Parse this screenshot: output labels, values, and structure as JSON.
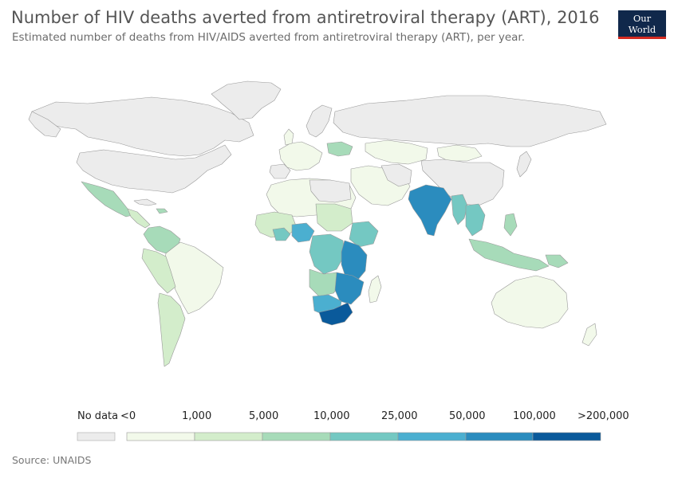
{
  "header": {
    "title": "Number of HIV deaths averted from antiretroviral therapy (ART), 2016",
    "subtitle": "Estimated number of deaths from HIV/AIDS averted from antiretroviral therapy (ART), per year.",
    "logo_line1": "Our World",
    "logo_line2": "in Data"
  },
  "legend": {
    "no_data_label": "No data",
    "no_data_color": "#ececec",
    "bins": [
      {
        "label": "<0",
        "color": "#f2f9ea"
      },
      {
        "label": "1,000",
        "color": "#d3edcb"
      },
      {
        "label": "5,000",
        "color": "#a7dbb9"
      },
      {
        "label": "10,000",
        "color": "#74c8c2"
      },
      {
        "label": "25,000",
        "color": "#4bafd0"
      },
      {
        "label": "50,000",
        "color": "#2b8cbe"
      },
      {
        "label": "100,000",
        "color": "#0a5a9b"
      },
      {
        "label": ">200,000",
        "color": "#0a5a9b"
      }
    ]
  },
  "source": "Source: UNAIDS",
  "colors": {
    "no_data": "#ececec",
    "lt_1000": "#f2f9ea",
    "b1000_5000": "#d3edcb",
    "b5000_10000": "#a7dbb9",
    "b10000_25000": "#74c8c2",
    "b25000_50000": "#4bafd0",
    "b50000_100000": "#2b8cbe",
    "gt_100000": "#0a5a9b"
  }
}
